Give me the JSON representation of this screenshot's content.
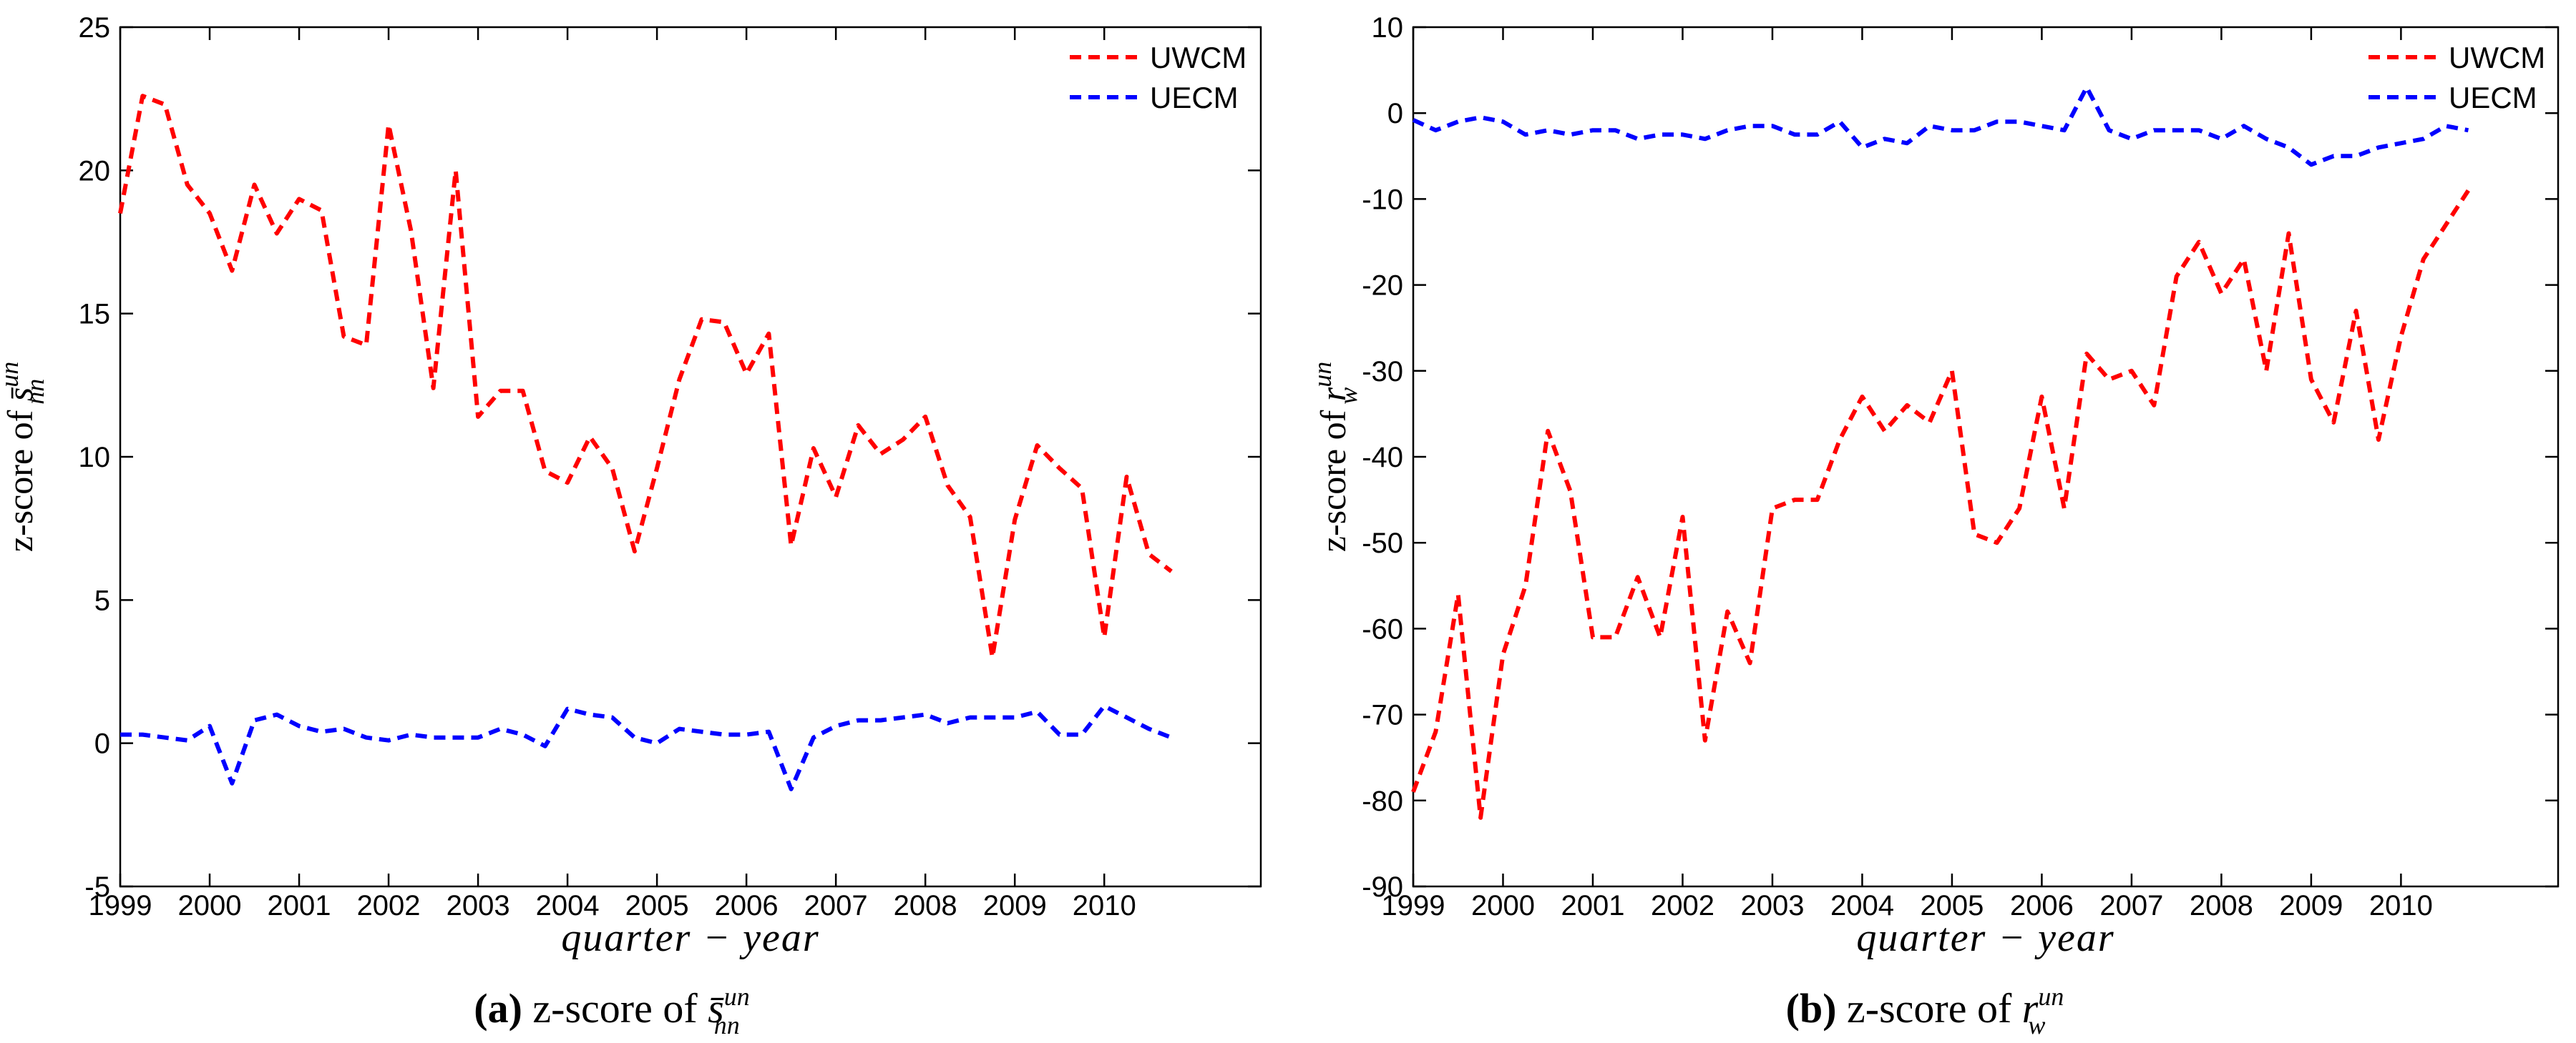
{
  "chart_data": [
    {
      "id": "a",
      "type": "line",
      "caption_label": "(a)",
      "caption_text": "z-score of",
      "symbol": "s̄",
      "symbol_sup": "un",
      "symbol_sub": "nn",
      "ylabel_text": "z-score of",
      "xlabel": "quarter − year",
      "xlim": [
        1999,
        2011.75
      ],
      "ylim": [
        -5,
        25
      ],
      "yticks": [
        -5,
        0,
        5,
        10,
        15,
        20,
        25
      ],
      "xticks": [
        1999,
        2000,
        2001,
        2002,
        2003,
        2004,
        2005,
        2006,
        2007,
        2008,
        2009,
        2010
      ],
      "legend_position": "top-right",
      "x_start": 1999,
      "x_step": 0.25,
      "series": [
        {
          "name": "UWCM",
          "color": "#ff0000",
          "values": [
            18.5,
            22.6,
            22.3,
            19.5,
            18.5,
            16.5,
            19.5,
            17.8,
            19.0,
            18.6,
            14.2,
            13.9,
            21.6,
            17.9,
            12.4,
            20.0,
            11.4,
            12.3,
            12.3,
            9.5,
            9.1,
            10.7,
            9.6,
            6.7,
            9.6,
            12.7,
            14.8,
            14.7,
            12.9,
            14.3,
            6.9,
            10.3,
            8.6,
            11.1,
            10.1,
            10.6,
            11.4,
            9.0,
            7.9,
            3.0,
            7.8,
            10.4,
            9.6,
            8.9,
            3.7,
            9.3,
            6.6,
            6.0
          ]
        },
        {
          "name": "UECM",
          "color": "#0000ff",
          "values": [
            0.3,
            0.3,
            0.2,
            0.1,
            0.6,
            -1.4,
            0.8,
            1.0,
            0.6,
            0.4,
            0.5,
            0.2,
            0.1,
            0.3,
            0.2,
            0.2,
            0.2,
            0.5,
            0.3,
            -0.1,
            1.2,
            1.0,
            0.9,
            0.2,
            0.0,
            0.5,
            0.4,
            0.3,
            0.3,
            0.4,
            -1.6,
            0.2,
            0.6,
            0.8,
            0.8,
            0.9,
            1.0,
            0.7,
            0.9,
            0.9,
            0.9,
            1.1,
            0.3,
            0.3,
            1.3,
            0.9,
            0.5,
            0.2
          ]
        }
      ]
    },
    {
      "id": "b",
      "type": "line",
      "caption_label": "(b)",
      "caption_text": "z-score of",
      "symbol": "r",
      "symbol_sup": "un",
      "symbol_sub": "w",
      "ylabel_text": "z-score of",
      "xlabel": "quarter − year",
      "xlim": [
        1999,
        2011.75
      ],
      "ylim": [
        -90,
        10
      ],
      "yticks": [
        -90,
        -80,
        -70,
        -60,
        -50,
        -40,
        -30,
        -20,
        -10,
        0,
        10
      ],
      "xticks": [
        1999,
        2000,
        2001,
        2002,
        2003,
        2004,
        2005,
        2006,
        2007,
        2008,
        2009,
        2010
      ],
      "legend_position": "top-right",
      "x_start": 1999,
      "x_step": 0.25,
      "series": [
        {
          "name": "UWCM",
          "color": "#ff0000",
          "values": [
            -79,
            -72,
            -56,
            -82,
            -63,
            -55,
            -37,
            -44,
            -61,
            -61,
            -54,
            -61,
            -47,
            -73,
            -58,
            -64,
            -46,
            -45,
            -45,
            -38,
            -33,
            -37,
            -34,
            -36,
            -30,
            -49,
            -50,
            -46,
            -33,
            -46,
            -28,
            -31,
            -30,
            -34,
            -19,
            -15,
            -21,
            -17,
            -30,
            -14,
            -31,
            -36,
            -23,
            -38,
            -26,
            -17,
            -13,
            -9
          ]
        },
        {
          "name": "UECM",
          "color": "#0000ff",
          "values": [
            -0.8,
            -2.0,
            -1.0,
            -0.5,
            -1.0,
            -2.5,
            -2.0,
            -2.5,
            -2.0,
            -2.0,
            -3.0,
            -2.5,
            -2.5,
            -3.0,
            -2.0,
            -1.5,
            -1.5,
            -2.5,
            -2.5,
            -1.0,
            -4.0,
            -3.0,
            -3.5,
            -1.5,
            -2.0,
            -2.0,
            -1.0,
            -1.0,
            -1.5,
            -2.0,
            3.0,
            -2.0,
            -3.0,
            -2.0,
            -2.0,
            -2.0,
            -3.0,
            -1.5,
            -3.0,
            -4.0,
            -6.0,
            -5.0,
            -5.0,
            -4.0,
            -3.5,
            -3.0,
            -1.5,
            -2.0
          ]
        }
      ]
    }
  ]
}
